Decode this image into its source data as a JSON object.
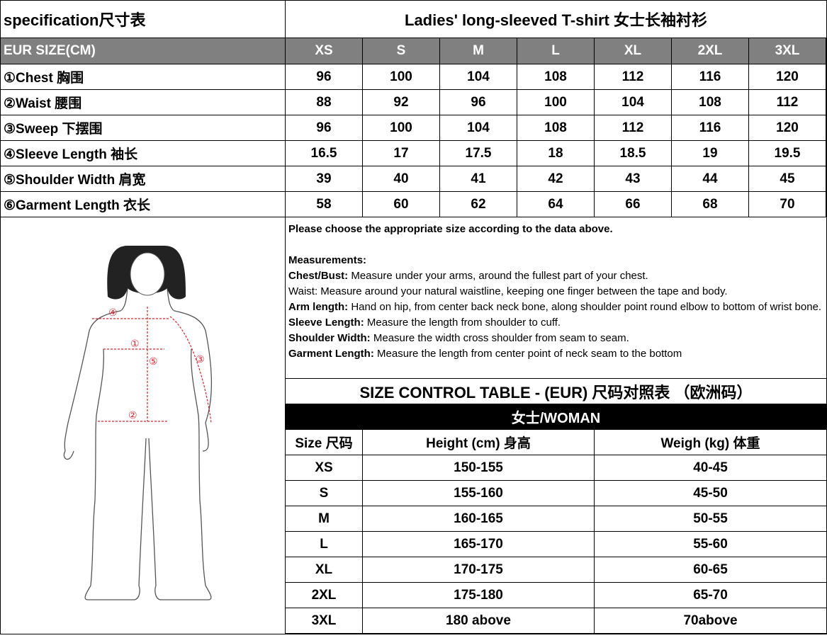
{
  "spec": {
    "title": "specification尺寸表",
    "product": "Ladies'  long-sleeved T-shirt 女士长袖衬衫",
    "header_label": "EUR  SIZE(CM)",
    "sizes": [
      "XS",
      "S",
      "M",
      "L",
      "XL",
      "2XL",
      "3XL"
    ],
    "rows": [
      {
        "label": "①Chest 胸围",
        "values": [
          "96",
          "100",
          "104",
          "108",
          "112",
          "116",
          "120"
        ]
      },
      {
        "label": "②Waist 腰围",
        "values": [
          "88",
          "92",
          "96",
          "100",
          "104",
          "108",
          "112"
        ]
      },
      {
        "label": "③Sweep 下摆围",
        "values": [
          "96",
          "100",
          "104",
          "108",
          "112",
          "116",
          "120"
        ]
      },
      {
        "label": "④Sleeve Length 袖长",
        "values": [
          "16.5",
          "17",
          "17.5",
          "18",
          "18.5",
          "19",
          "19.5"
        ]
      },
      {
        "label": "⑤Shoulder Width 肩宽",
        "values": [
          "39",
          "40",
          "41",
          "42",
          "43",
          "44",
          "45"
        ]
      },
      {
        "label": "⑥Garment Length 衣长",
        "values": [
          "58",
          "60",
          "62",
          "64",
          "66",
          "68",
          "70"
        ]
      }
    ]
  },
  "notes": {
    "intro": "Please choose the appropriate size according to the data above.",
    "heading": "Measurements:",
    "items": [
      {
        "term": "Chest/Bust:",
        "text": " Measure under your arms, around the fullest part of your chest."
      },
      {
        "term": "",
        "text": "Waist: Measure around your natural waistline, keeping one finger between the tape and body."
      },
      {
        "term": "Arm length:",
        "text": " Hand on hip, from center back neck bone, along shoulder point round elbow to bottom of wrist bone."
      },
      {
        "term": "Sleeve Length:",
        "text": " Measure the length from shoulder to cuff."
      },
      {
        "term": "Shoulder Width:",
        "text": " Measure the width cross shoulder from seam to seam."
      },
      {
        "term": "Garment Length:",
        "text": " Measure the length from center point of neck seam to the bottom"
      }
    ]
  },
  "control": {
    "title": "SIZE CONTROL TABLE - (EUR) 尺码对照表 （欧洲码）",
    "group": "女士/WOMAN",
    "headers": [
      "Size 尺码",
      "Height (cm) 身高",
      "Weigh (kg) 体重"
    ],
    "rows": [
      [
        "XS",
        "150-155",
        "40-45"
      ],
      [
        "S",
        "155-160",
        "45-50"
      ],
      [
        "M",
        "160-165",
        "50-55"
      ],
      [
        "L",
        "165-170",
        "55-60"
      ],
      [
        "XL",
        "170-175",
        "60-65"
      ],
      [
        "2XL",
        "175-180",
        "65-70"
      ],
      [
        "3XL",
        "180 above",
        "70above"
      ]
    ]
  },
  "figure": {
    "markers": [
      "①",
      "②",
      "③",
      "④",
      "⑤"
    ],
    "line_color": "#e0202a"
  }
}
